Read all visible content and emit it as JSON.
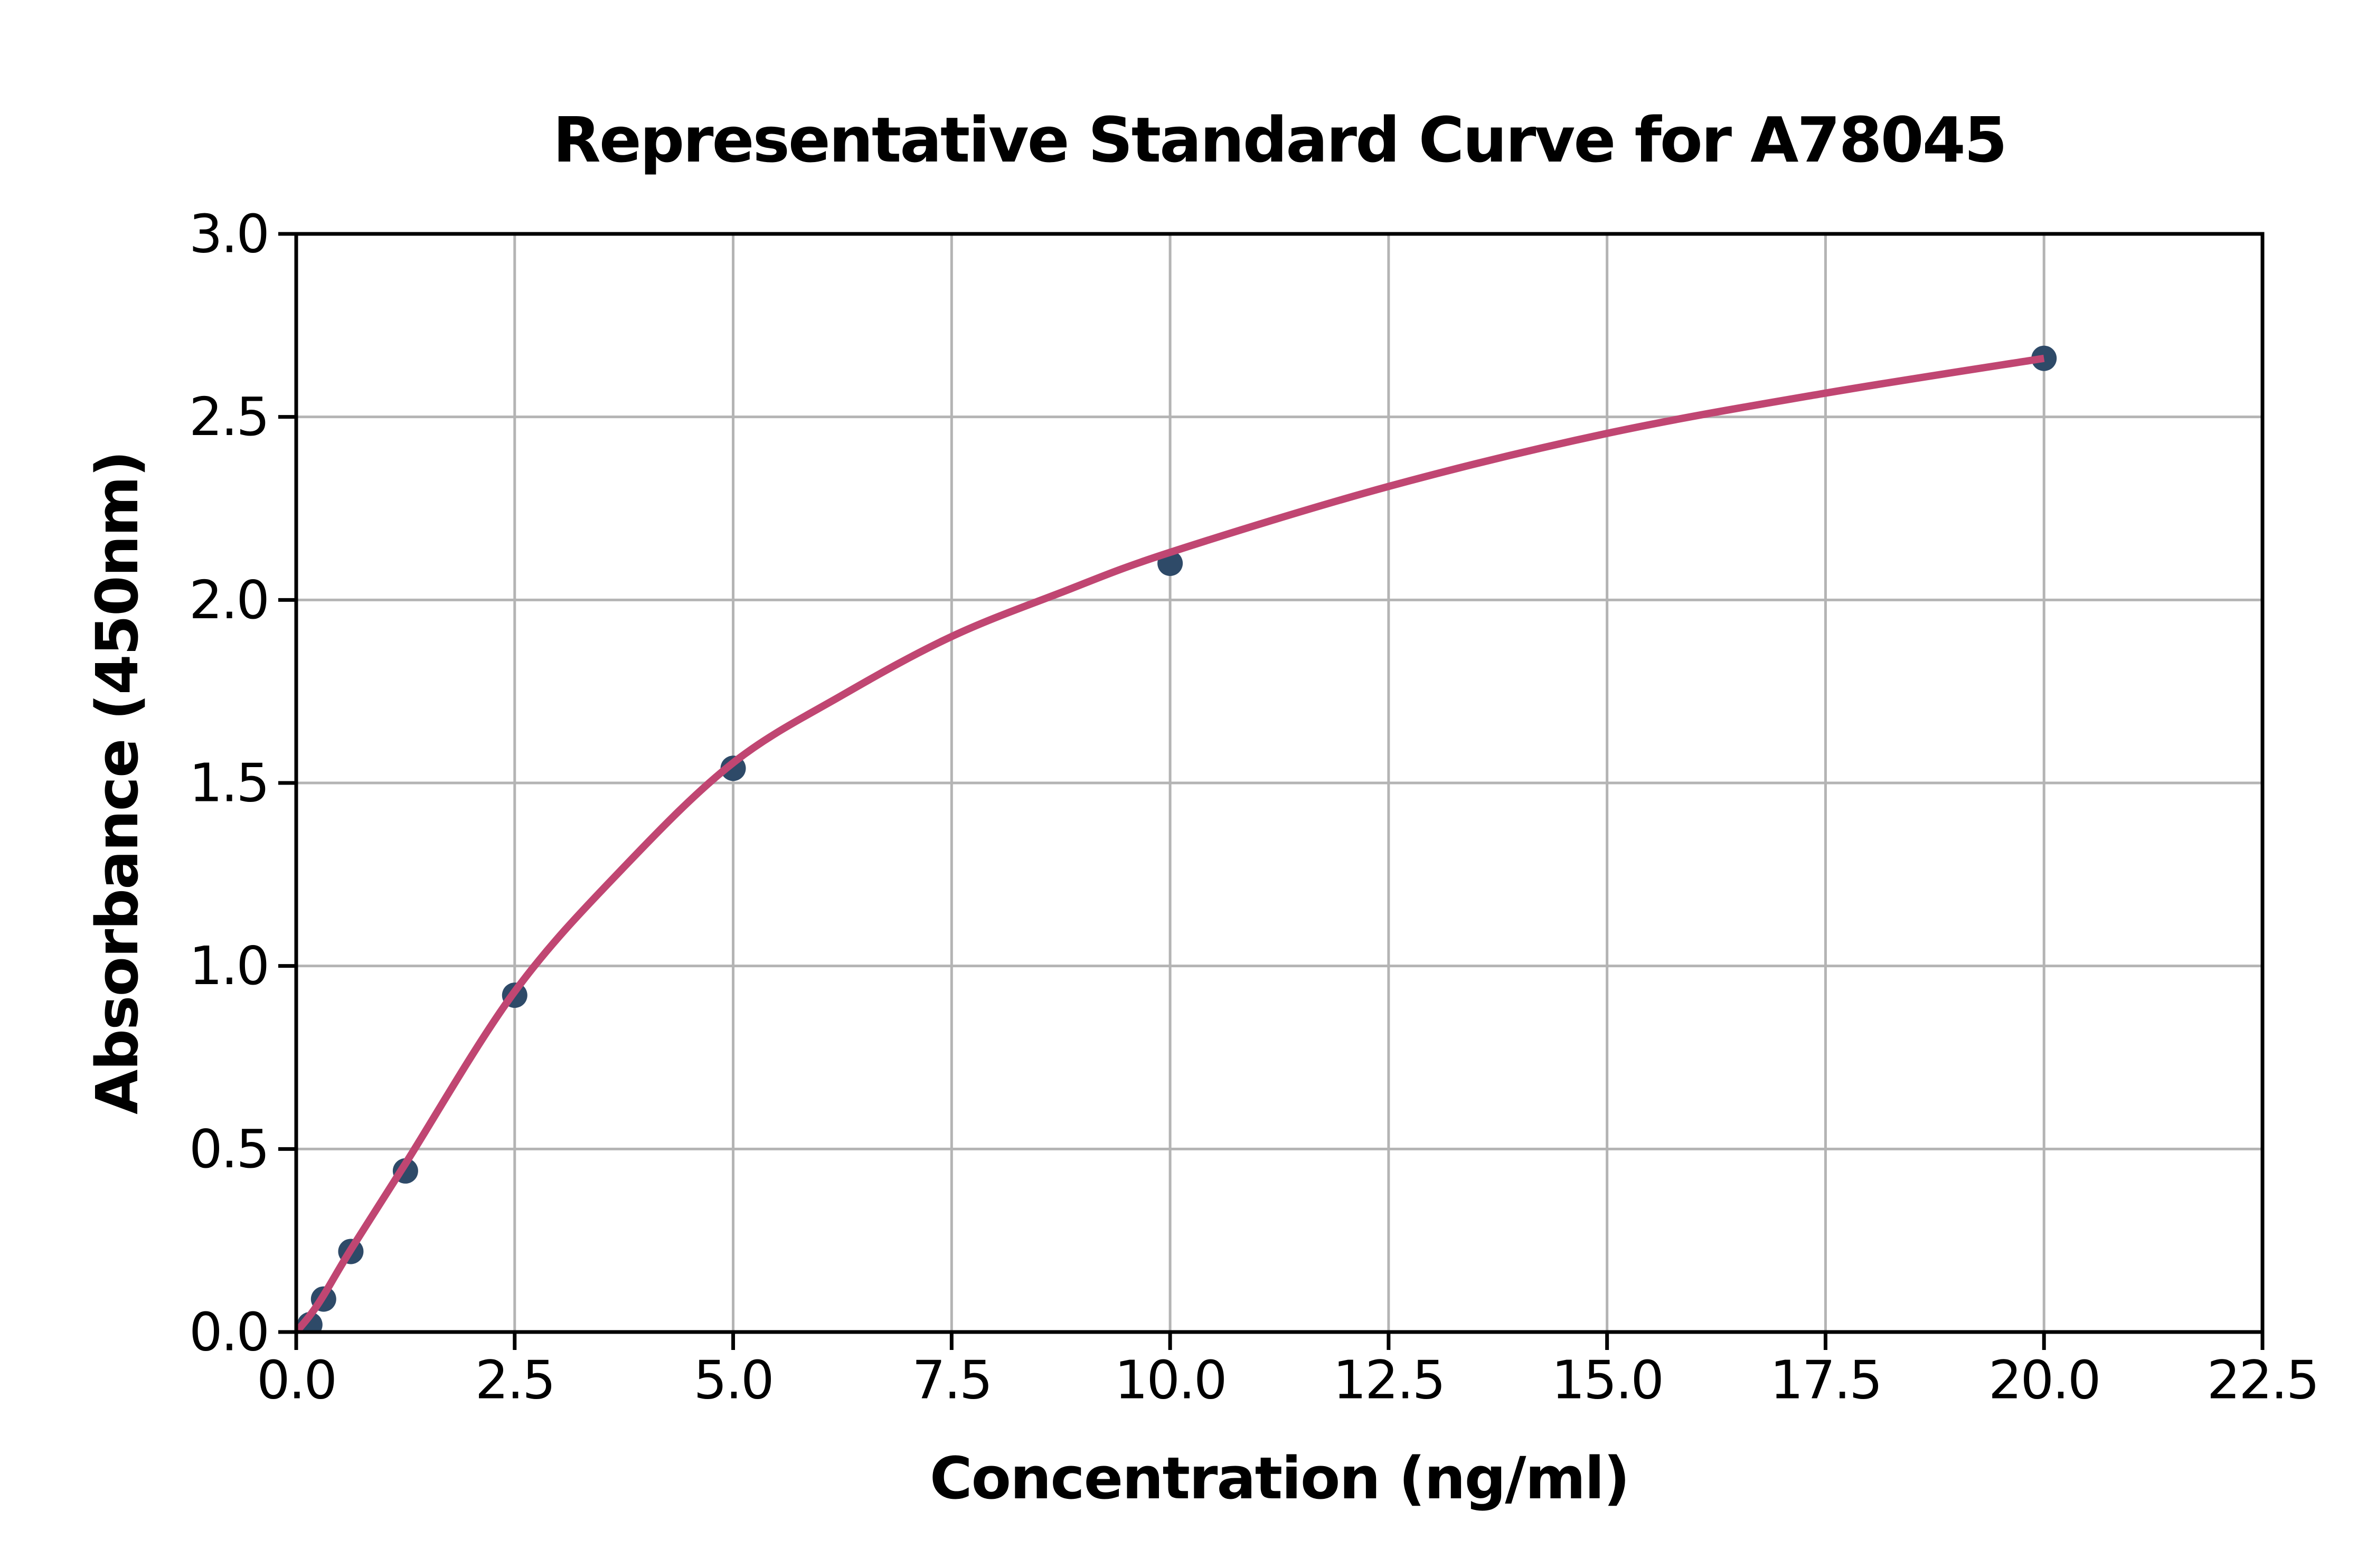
{
  "page": {
    "background": "#ffffff"
  },
  "chart_data": {
    "type": "scatter",
    "title": "Representative Standard Curve for A78045",
    "xlabel": "Concentration (ng/ml)",
    "ylabel": "Absorbance (450nm)",
    "xlim": [
      0,
      22.5
    ],
    "ylim": [
      0,
      3.0
    ],
    "x_ticks": [
      0,
      2.5,
      5,
      7.5,
      10,
      12.5,
      15,
      17.5,
      20,
      22.5
    ],
    "x_tick_labels": [
      "0.0",
      "2.5",
      "5.0",
      "7.5",
      "10.0",
      "12.5",
      "15.0",
      "17.5",
      "20.0",
      "22.5"
    ],
    "y_ticks": [
      0,
      0.5,
      1,
      1.5,
      2,
      2.5,
      3
    ],
    "y_tick_labels": [
      "0.0",
      "0.5",
      "1.0",
      "1.5",
      "2.0",
      "2.5",
      "3.0"
    ],
    "grid": true,
    "grid_color": "#b4b4b4",
    "axis_color": "#000000",
    "legend": null,
    "series": [
      {
        "name": "standard-points",
        "type": "scatter",
        "color": "#2e4a68",
        "x": [
          0.156,
          0.313,
          0.625,
          1.25,
          2.5,
          5,
          10,
          20
        ],
        "y": [
          0.02,
          0.09,
          0.22,
          0.44,
          0.92,
          1.54,
          2.1,
          2.66
        ]
      },
      {
        "name": "fitted-curve",
        "type": "line",
        "color": "#c04672",
        "x": [
          0,
          0.156,
          0.313,
          0.625,
          1.25,
          2.5,
          3.75,
          5,
          6.25,
          7.5,
          8.75,
          10,
          12.5,
          15,
          17.5,
          20
        ],
        "y": [
          0,
          0.045,
          0.1,
          0.225,
          0.46,
          0.93,
          1.27,
          1.555,
          1.74,
          1.9,
          2.02,
          2.13,
          2.31,
          2.455,
          2.565,
          2.66
        ]
      }
    ]
  }
}
